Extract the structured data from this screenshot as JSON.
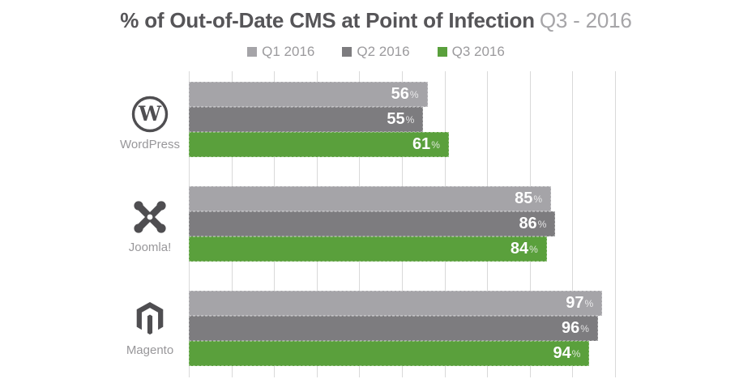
{
  "title": {
    "main": "% of Out-of-Date CMS at Point of Infection",
    "period": "Q3 - 2016"
  },
  "legend": [
    {
      "label": "Q1 2016",
      "color": "#a5a4a8"
    },
    {
      "label": "Q2 2016",
      "color": "#7d7c7f"
    },
    {
      "label": "Q3 2016",
      "color": "#5aa03c"
    }
  ],
  "chart_data": {
    "type": "bar",
    "orientation": "horizontal",
    "title": "% of Out-of-Date CMS at Point of Infection Q3 - 2016",
    "unit": "%",
    "categories": [
      "WordPress",
      "Joomla!",
      "Magento"
    ],
    "series": [
      {
        "name": "Q1 2016",
        "color": "#a5a4a8",
        "values": [
          56,
          85,
          97
        ]
      },
      {
        "name": "Q2 2016",
        "color": "#7d7c7f",
        "values": [
          55,
          86,
          96
        ]
      },
      {
        "name": "Q3 2016",
        "color": "#5aa03c",
        "values": [
          61,
          84,
          94
        ]
      }
    ],
    "xlim": [
      0,
      100
    ],
    "gridline_step": 10,
    "grid": true,
    "legend_position": "top",
    "value_labels": "inside-end",
    "icon_color": "#4f4e51"
  },
  "icons": {
    "wordpress": "wordpress-logo-icon",
    "joomla": "joomla-logo-icon",
    "magento": "magento-logo-icon"
  }
}
